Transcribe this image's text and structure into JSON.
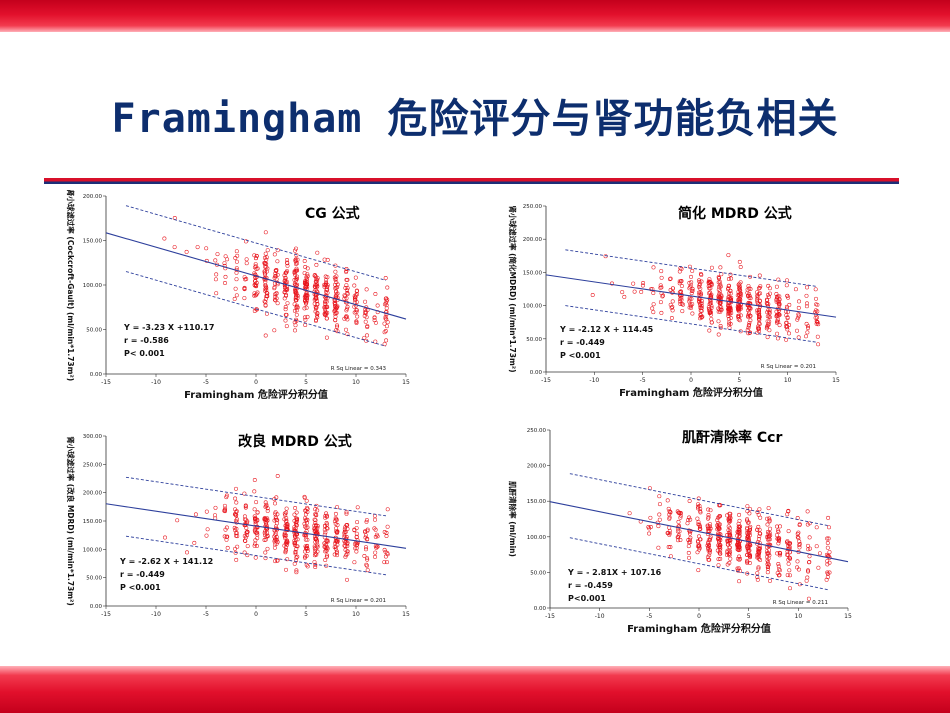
{
  "slide": {
    "title": "Framingham 危险评分与肾功能负相关",
    "colors": {
      "title": "#0d2e6e",
      "accent_red": "#d8102a",
      "accent_blue": "#1c2f78",
      "point": "#e8151d",
      "fit_line": "#2d3f9c",
      "ci_line": "#2d3f9c"
    }
  },
  "chart_data": [
    {
      "type": "scatter",
      "title": "CG 公式",
      "xlabel": "Framingham 危险评分积分值",
      "ylabel": "肾小球滤过率 (Cockcroft-Gault) (ml/min*1.73m²)",
      "xlim": [
        -15,
        15
      ],
      "ylim": [
        0,
        200
      ],
      "xticks": [
        "-15",
        "-10",
        "-5",
        "0",
        "5",
        "10",
        "15"
      ],
      "yticks": [
        "0.00",
        "50.00",
        "100.00",
        "150.00",
        "200.00"
      ],
      "yticks_values": [
        0,
        50,
        100,
        150,
        200
      ],
      "fit": {
        "slope": -3.23,
        "intercept": 110.17,
        "ci_halfwidth": 37
      },
      "equation": "Y = -3.23 X +110.17",
      "r": "r = -0.586",
      "p": "P< 0.001",
      "rsq": "R Sq Linear = 0.343",
      "grid": false
    },
    {
      "type": "scatter",
      "title": "简化 MDRD 公式",
      "xlabel": "Framingham 危险评分积分值",
      "ylabel": "肾小球滤过率 (简化MDRD) (ml/min*1.73m²)",
      "xlim": [
        -15,
        15
      ],
      "ylim": [
        0,
        250
      ],
      "xticks": [
        "-15",
        "-10",
        "-5",
        "0",
        "5",
        "10",
        "15"
      ],
      "yticks": [
        "0.00",
        "50.00",
        "100.00",
        "150.00",
        "200.00",
        "250.00"
      ],
      "yticks_values": [
        0,
        50,
        100,
        150,
        200,
        250
      ],
      "fit": {
        "slope": -2.12,
        "intercept": 114.45,
        "ci_halfwidth": 42
      },
      "equation": "Y = -2.12 X + 114.45",
      "r": "r = -0.449",
      "p": "P <0.001",
      "rsq": "R Sq Linear = 0.201",
      "grid": false
    },
    {
      "type": "scatter",
      "title": "改良 MDRD 公式",
      "xlabel": "Framingham 危险评分积分值",
      "ylabel": "肾小球滤过率 (改良 MDRD) (ml/min*1.73m²)",
      "xlim": [
        -15,
        15
      ],
      "ylim": [
        0,
        300
      ],
      "xticks": [
        "-15",
        "-10",
        "-5",
        "0",
        "5",
        "10",
        "15"
      ],
      "yticks": [
        "0.00",
        "50.00",
        "100.00",
        "150.00",
        "200.00",
        "250.00",
        "300.00"
      ],
      "yticks_values": [
        0,
        50,
        100,
        150,
        200,
        250,
        300
      ],
      "fit": {
        "slope": -2.62,
        "intercept": 141.12,
        "ci_halfwidth": 52
      },
      "equation": "Y = -2.62 X + 141.12",
      "r": "r = -0.449",
      "p": "P <0.001",
      "rsq": "R Sq Linear = 0.201",
      "grid": false
    },
    {
      "type": "scatter",
      "title": "肌酐清除率 Ccr",
      "xlabel": "Framingham 危险评分积分值",
      "ylabel": "肌酐清除率 (ml/min)",
      "xlim": [
        -15,
        15
      ],
      "ylim": [
        0,
        250
      ],
      "xticks": [
        "-15",
        "-10",
        "-5",
        "0",
        "5",
        "10",
        "15"
      ],
      "yticks": [
        "0.00",
        "50.00",
        "100.00",
        "150.00",
        "200.00",
        "250.00"
      ],
      "yticks_values": [
        0,
        50,
        100,
        150,
        200,
        250
      ],
      "fit": {
        "slope": -2.81,
        "intercept": 107.16,
        "ci_halfwidth": 45
      },
      "equation": "Y = - 2.81X + 107.16",
      "r": "r = -0.459",
      "p": "P<0.001",
      "rsq": "R Sq Linear = 0.211",
      "grid": false
    }
  ]
}
